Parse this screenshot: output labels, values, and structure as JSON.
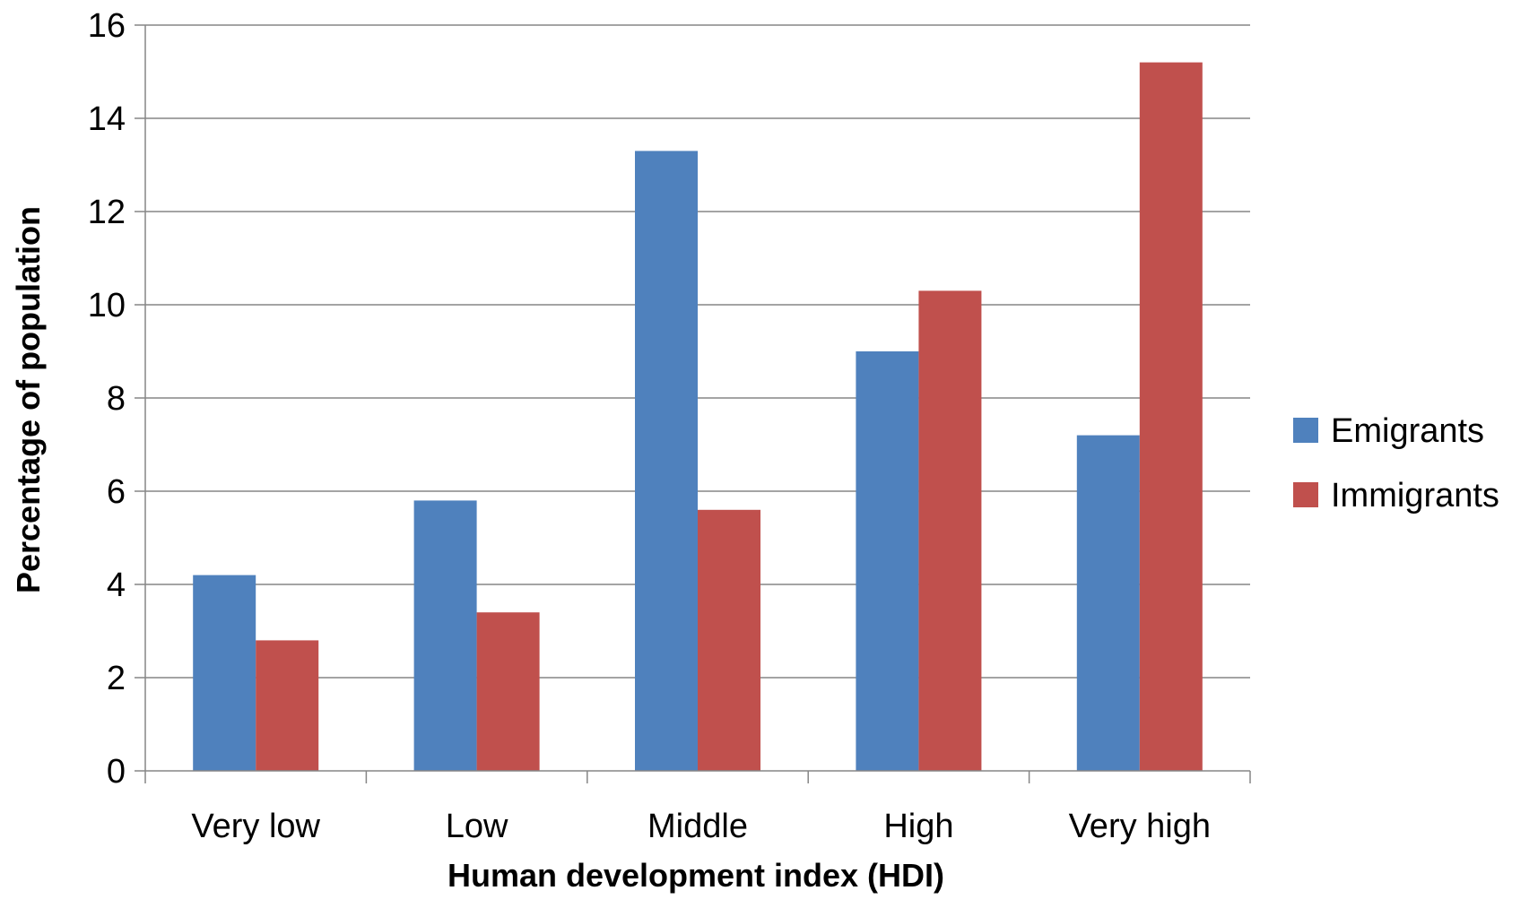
{
  "chart_data": {
    "type": "bar",
    "categories": [
      "Very low",
      "Low",
      "Middle",
      "High",
      "Very high"
    ],
    "series": [
      {
        "name": "Emigrants",
        "values": [
          4.2,
          5.8,
          13.3,
          9.0,
          7.2
        ],
        "color": "#4F81BD"
      },
      {
        "name": "Immigrants",
        "values": [
          2.8,
          3.4,
          5.6,
          10.3,
          15.2
        ],
        "color": "#C0504D"
      }
    ],
    "xlabel": "Human development index (HDI)",
    "ylabel": "Percentage of population",
    "ylim": [
      0,
      16
    ],
    "yticks": [
      0,
      2,
      4,
      6,
      8,
      10,
      12,
      14,
      16
    ],
    "grid": true,
    "legend_position": "right",
    "colors": {
      "gridline": "#868686",
      "axis": "#868686"
    }
  }
}
